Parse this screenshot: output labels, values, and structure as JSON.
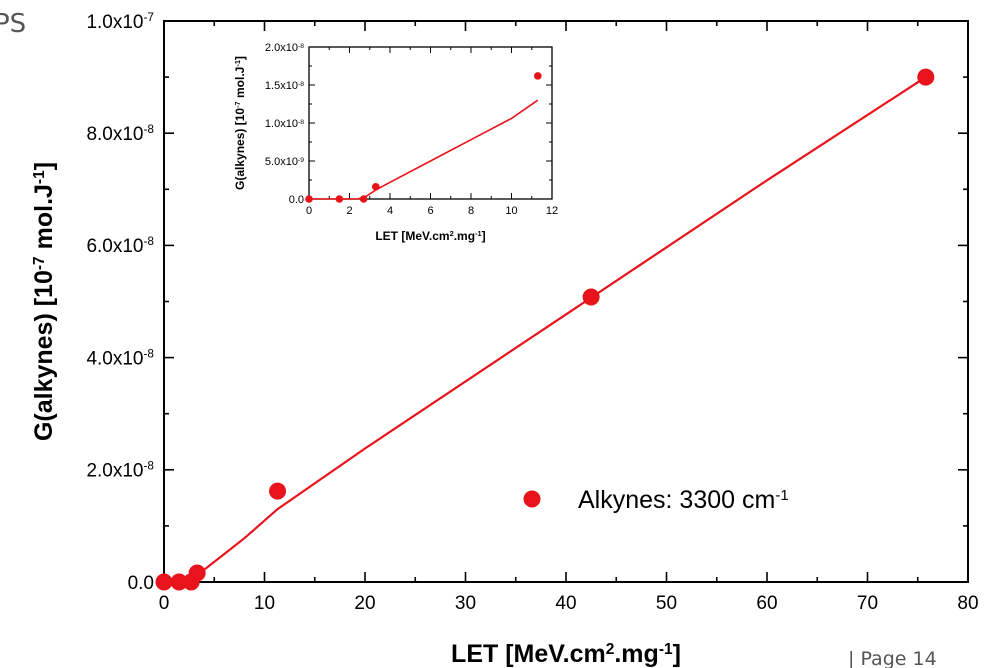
{
  "slide": {
    "corner_fragment": "PS",
    "page_label": "Page 14"
  },
  "chart_data": [
    {
      "type": "scatter",
      "x_label_parts": [
        "LET [MeV.cm",
        "2",
        ".mg",
        "-1",
        "]"
      ],
      "y_label_parts": [
        "G(alkynes) [10",
        "-7",
        " mol.J",
        "-1",
        "]"
      ],
      "xlim": [
        0,
        80
      ],
      "ylim": [
        0,
        1e-07
      ],
      "x_ticks": [
        "0",
        "10",
        "20",
        "30",
        "40",
        "50",
        "60",
        "70",
        "80"
      ],
      "x_tick_values": [
        0,
        10,
        20,
        30,
        40,
        50,
        60,
        70,
        80
      ],
      "y_ticks": [
        {
          "value": 0,
          "mantissa": "0.0",
          "exp": ""
        },
        {
          "value": 2e-08,
          "mantissa": "2.0x10",
          "exp": "-8"
        },
        {
          "value": 4e-08,
          "mantissa": "4.0x10",
          "exp": "-8"
        },
        {
          "value": 6e-08,
          "mantissa": "6.0x10",
          "exp": "-8"
        },
        {
          "value": 8e-08,
          "mantissa": "8.0x10",
          "exp": "-8"
        },
        {
          "value": 1e-07,
          "mantissa": "1.0x10",
          "exp": "-7"
        }
      ],
      "series": [
        {
          "name": "Alkynes: 3300 cm",
          "name_sup": "-1",
          "color": "#e8131b",
          "points": [
            {
              "x": 0.0,
              "y": 0
            },
            {
              "x": 1.5,
              "y": 0
            },
            {
              "x": 2.7,
              "y": 0
            },
            {
              "x": 3.3,
              "y": 1.6e-09
            },
            {
              "x": 11.3,
              "y": 1.62e-08
            },
            {
              "x": 42.5,
              "y": 5.08e-08
            },
            {
              "x": 75.8,
              "y": 9e-08
            }
          ]
        }
      ],
      "fit_line": {
        "color": "#e8131b",
        "points": [
          {
            "x": 0.0,
            "y": 0
          },
          {
            "x": 1.0,
            "y": 0
          },
          {
            "x": 1.8,
            "y": 0
          },
          {
            "x": 2.4,
            "y": 0
          },
          {
            "x": 2.8,
            "y": 3e-10
          },
          {
            "x": 3.3,
            "y": 1.2e-09
          },
          {
            "x": 4.0,
            "y": 2.2e-09
          },
          {
            "x": 6.0,
            "y": 5e-09
          },
          {
            "x": 8.0,
            "y": 7.8e-09
          },
          {
            "x": 11.3,
            "y": 1.3e-08
          },
          {
            "x": 20.0,
            "y": 2.38e-08
          },
          {
            "x": 40.0,
            "y": 4.77e-08
          },
          {
            "x": 60.0,
            "y": 7.16e-08
          },
          {
            "x": 75.8,
            "y": 9e-08
          }
        ]
      },
      "legend_position": "lower-right",
      "grid": false
    },
    {
      "type": "scatter",
      "role": "inset",
      "x_label_parts": [
        "LET [MeV.cm",
        "2",
        ".mg",
        "-1",
        "]"
      ],
      "y_label_parts": [
        "G(alkynes) [10",
        "-7",
        " mol.J",
        "-1",
        "]"
      ],
      "xlim": [
        0,
        12
      ],
      "ylim": [
        0,
        2e-08
      ],
      "x_ticks": [
        "0",
        "2",
        "4",
        "6",
        "8",
        "10",
        "12"
      ],
      "x_tick_values": [
        0,
        2,
        4,
        6,
        8,
        10,
        12
      ],
      "y_ticks": [
        {
          "value": 0,
          "mantissa": "0.0",
          "exp": ""
        },
        {
          "value": 5e-09,
          "mantissa": "5.0x10",
          "exp": "-9"
        },
        {
          "value": 1e-08,
          "mantissa": "1.0x10",
          "exp": "-8"
        },
        {
          "value": 1.5e-08,
          "mantissa": "1.5x10",
          "exp": "-8"
        },
        {
          "value": 2e-08,
          "mantissa": "2.0x10",
          "exp": "-8"
        }
      ],
      "series": [
        {
          "color": "#e8131b",
          "points": [
            {
              "x": 0.0,
              "y": 0
            },
            {
              "x": 1.5,
              "y": 0
            },
            {
              "x": 2.7,
              "y": 0
            },
            {
              "x": 3.3,
              "y": 1.6e-09
            },
            {
              "x": 11.3,
              "y": 1.62e-08
            }
          ]
        }
      ],
      "fit_line": {
        "color": "#e8131b",
        "points": [
          {
            "x": 0.0,
            "y": 0
          },
          {
            "x": 1.0,
            "y": 0
          },
          {
            "x": 1.8,
            "y": 0
          },
          {
            "x": 2.4,
            "y": 0
          },
          {
            "x": 2.8,
            "y": 3e-10
          },
          {
            "x": 3.3,
            "y": 1.2e-09
          },
          {
            "x": 4.0,
            "y": 2.2e-09
          },
          {
            "x": 6.0,
            "y": 5e-09
          },
          {
            "x": 8.0,
            "y": 7.8e-09
          },
          {
            "x": 10.0,
            "y": 1.06e-08
          },
          {
            "x": 11.3,
            "y": 1.3e-08
          }
        ]
      },
      "grid": false
    }
  ]
}
